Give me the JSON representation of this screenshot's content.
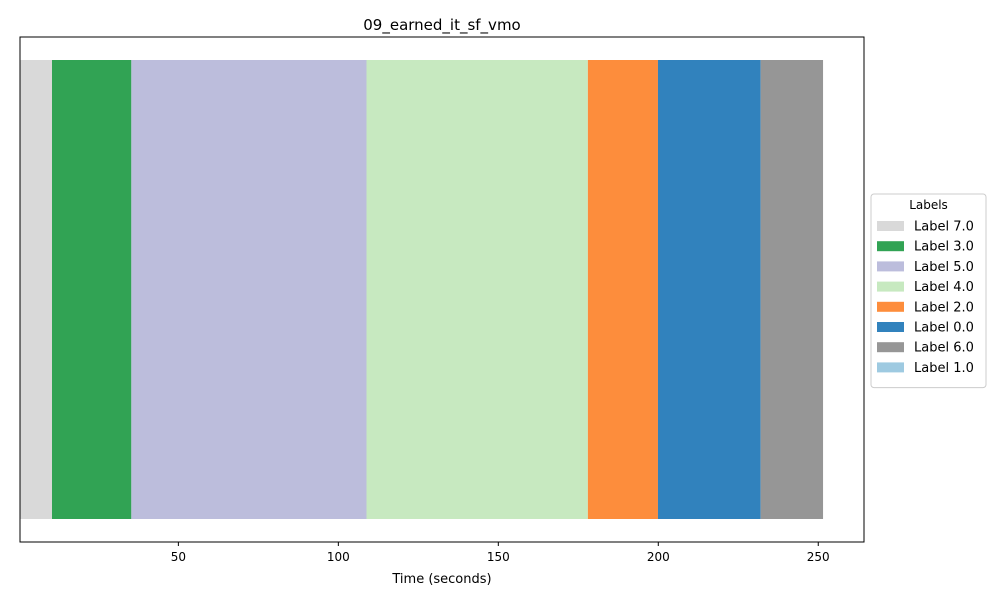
{
  "chart_data": {
    "type": "bar",
    "orientation": "horizontal-timeline",
    "title": "09_earned_it_sf_vmo",
    "xlabel": "Time (seconds)",
    "ylabel": "",
    "xlim": [
      0.5,
      264.3
    ],
    "x_ticks": [
      50,
      100,
      150,
      200,
      250
    ],
    "grid": false,
    "segments": [
      {
        "label": "Label 7.0",
        "start": 0.5,
        "end": 10.5,
        "color": "#d9d9d9"
      },
      {
        "label": "Label 3.0",
        "start": 10.5,
        "end": 35.3,
        "color": "#31a354"
      },
      {
        "label": "Label 5.0",
        "start": 35.3,
        "end": 108.8,
        "color": "#bcbddc"
      },
      {
        "label": "Label 4.0",
        "start": 108.8,
        "end": 178.0,
        "color": "#c7e9c0"
      },
      {
        "label": "Label 2.0",
        "start": 178.0,
        "end": 199.9,
        "color": "#fd8d3c"
      },
      {
        "label": "Label 0.0",
        "start": 199.9,
        "end": 232.0,
        "color": "#3182bd"
      },
      {
        "label": "Label 6.0",
        "start": 232.0,
        "end": 251.5,
        "color": "#969696"
      }
    ],
    "legend": {
      "title": "Labels",
      "placement": "right",
      "entries": [
        {
          "label": "Label 7.0",
          "color": "#d9d9d9"
        },
        {
          "label": "Label 3.0",
          "color": "#31a354"
        },
        {
          "label": "Label 5.0",
          "color": "#bcbddc"
        },
        {
          "label": "Label 4.0",
          "color": "#c7e9c0"
        },
        {
          "label": "Label 2.0",
          "color": "#fd8d3c"
        },
        {
          "label": "Label 0.0",
          "color": "#3182bd"
        },
        {
          "label": "Label 6.0",
          "color": "#969696"
        },
        {
          "label": "Label 1.0",
          "color": "#9ecae1"
        }
      ]
    }
  }
}
